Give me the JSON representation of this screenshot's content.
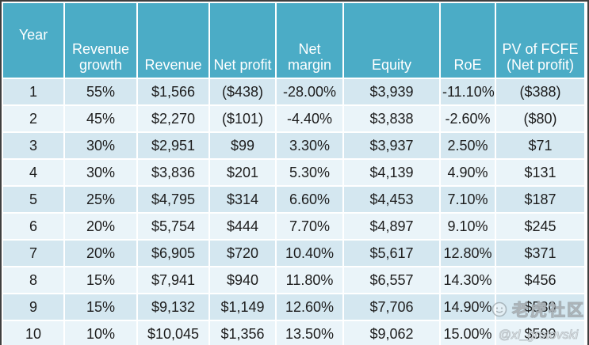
{
  "chart_data": {
    "type": "table",
    "columns": [
      "Year",
      "Revenue growth",
      "Revenue",
      "Net profit",
      "Net margin",
      "Equity",
      "RoE",
      "PV of FCFE (Net profit)"
    ],
    "rows": [
      [
        "1",
        "55%",
        "$1,566",
        "($438)",
        "-28.00%",
        "$3,939",
        "-11.10%",
        "($388)"
      ],
      [
        "2",
        "45%",
        "$2,270",
        "($101)",
        "-4.40%",
        "$3,838",
        "-2.60%",
        "($80)"
      ],
      [
        "3",
        "30%",
        "$2,951",
        "$99",
        "3.30%",
        "$3,937",
        "2.50%",
        "$71"
      ],
      [
        "4",
        "30%",
        "$3,836",
        "$201",
        "5.30%",
        "$4,139",
        "4.90%",
        "$131"
      ],
      [
        "5",
        "25%",
        "$4,795",
        "$314",
        "6.60%",
        "$4,453",
        "7.10%",
        "$187"
      ],
      [
        "6",
        "20%",
        "$5,754",
        "$444",
        "7.70%",
        "$4,897",
        "9.10%",
        "$245"
      ],
      [
        "7",
        "20%",
        "$6,905",
        "$720",
        "10.40%",
        "$5,617",
        "12.80%",
        "$371"
      ],
      [
        "8",
        "15%",
        "$7,941",
        "$940",
        "11.80%",
        "$6,557",
        "14.30%",
        "$456"
      ],
      [
        "9",
        "15%",
        "$9,132",
        "$1,149",
        "12.60%",
        "$7,706",
        "14.90%",
        "$530"
      ],
      [
        "10",
        "10%",
        "$10,045",
        "$1,356",
        "13.50%",
        "$9,062",
        "15.00%",
        "$599"
      ]
    ],
    "layout": {
      "header_align": "center",
      "cell_align": "center",
      "striped": true
    }
  },
  "watermark": {
    "community": "老虎社区",
    "handle": "@xl_grotovski"
  },
  "colors": {
    "header_bg": "#4BACC6",
    "header_text": "#FFFFFF",
    "row_odd": "#D4E7F0",
    "row_even": "#EAF4F9",
    "grid_gap": "#FFFFFF",
    "outer_border": "#3F3F3F",
    "cell_text": "#1D1D1D"
  }
}
